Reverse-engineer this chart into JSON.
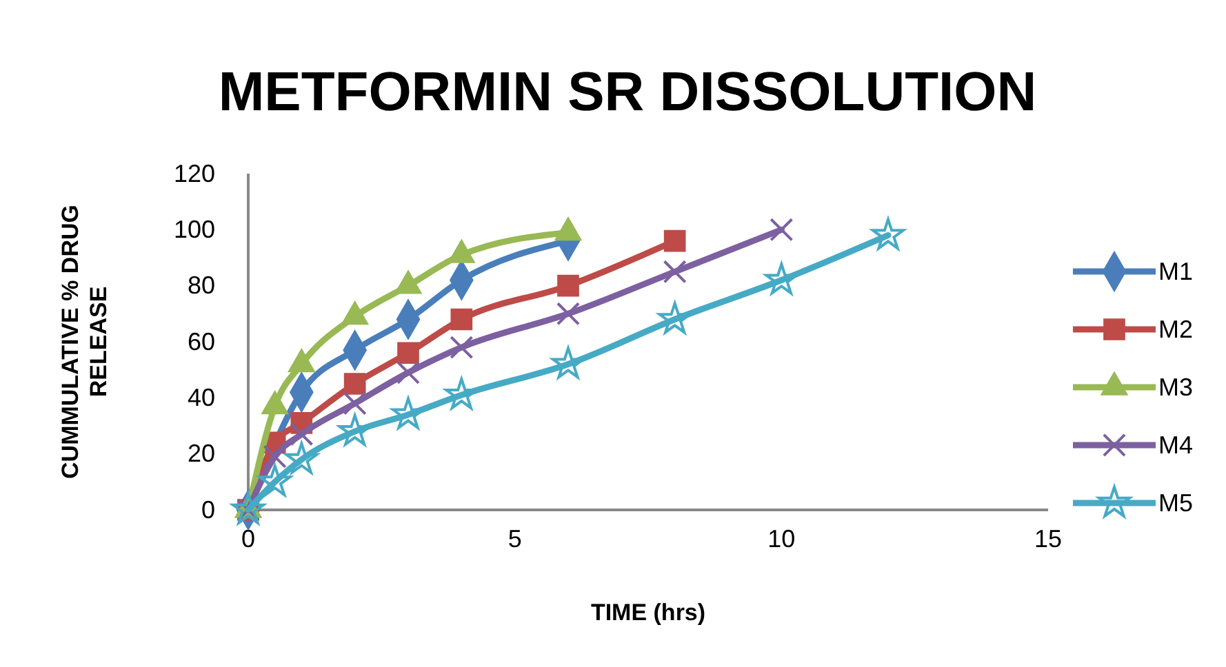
{
  "chart_data": {
    "type": "line",
    "title": "METFORMIN SR DISSOLUTION",
    "xlabel": "TIME (hrs)",
    "ylabel": "CUMMULATIVE % DRUG RELEASE",
    "xlim": [
      0,
      15
    ],
    "xticks": [
      0,
      5,
      10,
      15
    ],
    "ylim": [
      0,
      120
    ],
    "yticks": [
      0,
      20,
      40,
      60,
      80,
      100,
      120
    ],
    "grid": false,
    "legend": "right",
    "series": [
      {
        "name": "M1",
        "color": "#4a7ebb",
        "marker": "diamond",
        "x": [
          0,
          0.5,
          1,
          2,
          3,
          4,
          6
        ],
        "values": [
          0,
          null,
          42,
          57,
          68,
          82,
          96
        ]
      },
      {
        "name": "M2",
        "color": "#be4b48",
        "marker": "square",
        "x": [
          0,
          0.5,
          1,
          2,
          3,
          4,
          6,
          8
        ],
        "values": [
          0,
          24,
          31,
          45,
          56,
          68,
          80,
          96
        ]
      },
      {
        "name": "M3",
        "color": "#98b954",
        "marker": "triangle",
        "x": [
          0,
          0.5,
          1,
          2,
          3,
          4,
          6
        ],
        "values": [
          0,
          37,
          52,
          69,
          80,
          91,
          99
        ]
      },
      {
        "name": "M4",
        "color": "#7d60a0",
        "marker": "cross",
        "x": [
          0,
          0.5,
          1,
          2,
          3,
          4,
          6,
          8,
          10
        ],
        "values": [
          0,
          19,
          27,
          38,
          49,
          58,
          70,
          85,
          100
        ]
      },
      {
        "name": "M5",
        "color": "#46aac5",
        "marker": "star",
        "x": [
          0,
          0.5,
          1,
          2,
          3,
          4,
          6,
          8,
          10,
          12
        ],
        "values": [
          0,
          10,
          18,
          28,
          34,
          41,
          52,
          68,
          82,
          98
        ]
      }
    ]
  }
}
